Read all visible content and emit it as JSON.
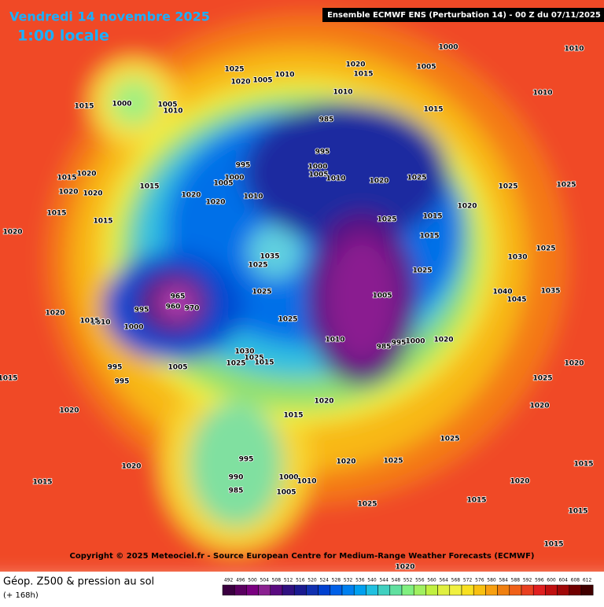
{
  "header": {
    "date": "Vendredi 14 novembre 2025",
    "time": "1:00 locale",
    "run": "Ensemble ECMWF ENS  (Perturbation 14)  -  00 Z du 07/11/2025"
  },
  "copyright": "Copyright © 2025 Meteociel.fr - Source European Centre for Medium-Range Weather Forecasts (ECMWF)",
  "footer": {
    "title": "Géop. Z500 & pression au sol",
    "lead": "(+ 168h)"
  },
  "scale": {
    "labels": [
      492,
      496,
      500,
      504,
      508,
      512,
      516,
      520,
      524,
      528,
      532,
      536,
      540,
      544,
      548,
      552,
      556,
      560,
      564,
      568,
      572,
      576,
      580,
      584,
      588,
      592,
      596,
      600,
      604,
      608,
      612
    ],
    "colors": [
      "#3a0040",
      "#5a0060",
      "#7a0080",
      "#8a2090",
      "#5a0a80",
      "#301080",
      "#1a1a90",
      "#1030b0",
      "#0040d0",
      "#0060e8",
      "#0080f0",
      "#00a0f0",
      "#20c0e0",
      "#40d0c0",
      "#60e0a0",
      "#80f080",
      "#a0f060",
      "#c0f040",
      "#e0f040",
      "#f0f040",
      "#f8e020",
      "#f8c010",
      "#f8a010",
      "#f08010",
      "#f06018",
      "#e84020",
      "#e02020",
      "#c01010",
      "#a00808",
      "#700000",
      "#400000"
    ]
  },
  "isobars": [
    1015,
    1000,
    1005,
    1010,
    1025,
    1020,
    1005,
    1010,
    1020,
    1015,
    1005,
    1000,
    1010,
    1010,
    1010,
    985,
    995,
    1000,
    1005,
    1010,
    1020,
    1015,
    995,
    1000,
    1005,
    1010,
    1020,
    1020,
    1015,
    1020,
    1015,
    1020,
    1020,
    1015,
    1020,
    1015,
    1035,
    1025,
    1025,
    1025,
    965,
    960,
    970,
    995,
    1000,
    1010,
    1015,
    1020,
    995,
    995,
    1005,
    1030,
    1025,
    1025,
    1015,
    1010,
    1005,
    985,
    995,
    1000,
    1020,
    1020,
    1015,
    1025,
    1015,
    1025,
    1015,
    1020,
    1025,
    1025,
    1025,
    1030,
    1025,
    1040,
    1045,
    1035,
    1025,
    1020,
    1020,
    1015,
    1020,
    1015,
    1025,
    1020,
    1025,
    1025,
    995,
    990,
    985,
    1000,
    1010,
    1005,
    1020,
    1015,
    1020,
    1015,
    1020,
    1015,
    1015
  ]
}
